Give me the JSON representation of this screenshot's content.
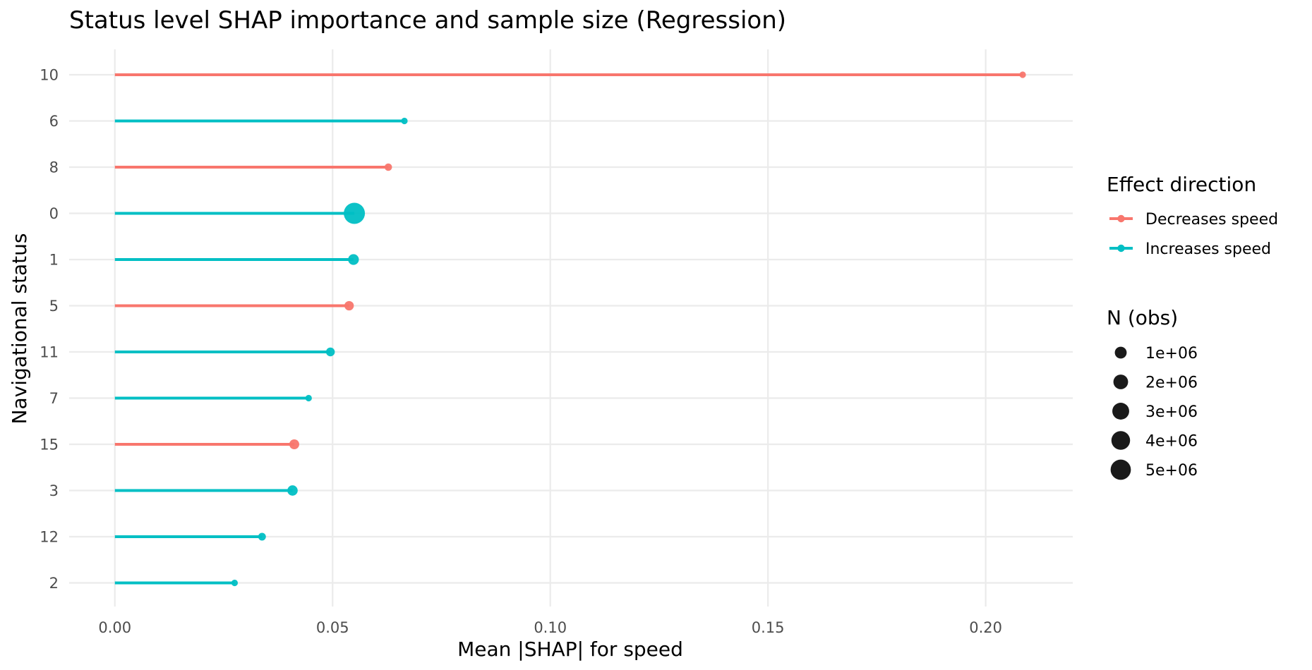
{
  "chart_data": {
    "type": "lollipop",
    "title": "Status level SHAP importance and sample size (Regression)",
    "xlabel": "Mean |SHAP| for speed",
    "ylabel": "Navigational status",
    "xlim": [
      -0.0105,
      0.22
    ],
    "xticks": [
      0.0,
      0.05,
      0.1,
      0.15,
      0.2
    ],
    "xtick_labels": [
      "0.00",
      "0.05",
      "0.10",
      "0.15",
      "0.20"
    ],
    "colors": {
      "Decreases speed": "#F8766D",
      "Increases speed": "#00BFC4"
    },
    "points": [
      {
        "status": "10",
        "value": 0.2085,
        "direction": "Decreases speed",
        "n": 5000
      },
      {
        "status": "6",
        "value": 0.0665,
        "direction": "Increases speed",
        "n": 3000
      },
      {
        "status": "8",
        "value": 0.0628,
        "direction": "Decreases speed",
        "n": 120000
      },
      {
        "status": "0",
        "value": 0.055,
        "direction": "Increases speed",
        "n": 5600000
      },
      {
        "status": "1",
        "value": 0.0548,
        "direction": "Increases speed",
        "n": 700000
      },
      {
        "status": "5",
        "value": 0.0538,
        "direction": "Decreases speed",
        "n": 400000
      },
      {
        "status": "11",
        "value": 0.0495,
        "direction": "Increases speed",
        "n": 300000
      },
      {
        "status": "7",
        "value": 0.0445,
        "direction": "Increases speed",
        "n": 8000
      },
      {
        "status": "15",
        "value": 0.0412,
        "direction": "Decreases speed",
        "n": 500000
      },
      {
        "status": "3",
        "value": 0.0408,
        "direction": "Increases speed",
        "n": 600000
      },
      {
        "status": "12",
        "value": 0.0338,
        "direction": "Increases speed",
        "n": 150000
      },
      {
        "status": "2",
        "value": 0.0275,
        "direction": "Increases speed",
        "n": 6000
      }
    ],
    "legend": {
      "color_title": "Effect direction",
      "color_items": [
        "Decreases speed",
        "Increases speed"
      ],
      "size_title": "N (obs)",
      "size_items": [
        {
          "label": "1e+06",
          "n": 1000000
        },
        {
          "label": "2e+06",
          "n": 2000000
        },
        {
          "label": "3e+06",
          "n": 3000000
        },
        {
          "label": "4e+06",
          "n": 4000000
        },
        {
          "label": "5e+06",
          "n": 5000000
        }
      ],
      "position": "right"
    }
  }
}
